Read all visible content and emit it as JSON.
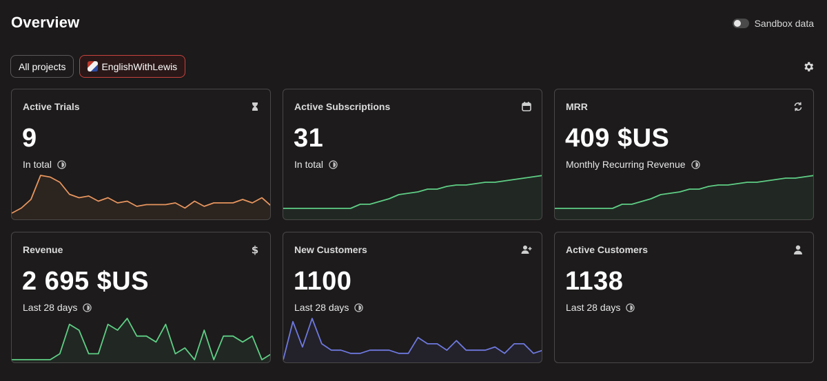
{
  "header": {
    "title": "Overview",
    "sandbox_label": "Sandbox data"
  },
  "filters": [
    {
      "label": "All projects",
      "selected": false
    },
    {
      "label": "EnglishWithLewis",
      "selected": true
    }
  ],
  "cards": [
    {
      "title": "Active Trials",
      "value": "9",
      "subtitle": "In total",
      "icon": "hourglass-icon",
      "color": "#e8965f",
      "series": [
        2,
        5,
        10,
        24,
        23,
        20,
        13,
        11,
        12,
        9,
        11,
        8,
        9,
        6,
        7,
        7,
        7,
        8,
        5,
        9,
        6,
        8,
        8,
        8,
        10,
        8,
        11,
        6
      ]
    },
    {
      "title": "Active Subscriptions",
      "value": "31",
      "subtitle": "In total",
      "icon": "calendar-icon",
      "color": "#5fcf86",
      "series": [
        6,
        6,
        6,
        6,
        6,
        6,
        6,
        6,
        9,
        9,
        11,
        13,
        16,
        17,
        18,
        20,
        20,
        22,
        23,
        23,
        24,
        25,
        25,
        26,
        27,
        28,
        29,
        30
      ]
    },
    {
      "title": "MRR",
      "value": "409 $US",
      "subtitle": "Monthly Recurring Revenue",
      "icon": "refresh-icon",
      "color": "#5fcf86",
      "series": [
        6,
        6,
        6,
        6,
        6,
        6,
        6,
        9,
        9,
        11,
        13,
        16,
        17,
        18,
        20,
        20,
        22,
        23,
        23,
        24,
        25,
        25,
        26,
        27,
        28,
        28,
        29,
        30
      ]
    },
    {
      "title": "Revenue",
      "value": "2 695 $US",
      "subtitle": "Last 28 days",
      "icon": "dollar-icon",
      "color": "#5fcf86",
      "series": [
        0,
        0,
        0,
        0,
        0,
        1,
        6,
        5,
        1,
        1,
        6,
        5,
        7,
        4,
        4,
        3,
        6,
        1,
        2,
        0,
        5,
        0,
        4,
        4,
        3,
        4,
        0,
        1
      ]
    },
    {
      "title": "New Customers",
      "value": "1100",
      "subtitle": "Last 28 days",
      "icon": "add-user-icon",
      "color": "#6e79e0",
      "series": [
        0,
        12,
        4,
        13,
        5,
        3,
        3,
        2,
        2,
        3,
        3,
        3,
        2,
        2,
        7,
        5,
        5,
        3,
        6,
        3,
        3,
        3,
        4,
        2,
        5,
        5,
        2,
        3
      ]
    },
    {
      "title": "Active Customers",
      "value": "1138",
      "subtitle": "Last 28 days",
      "icon": "user-icon",
      "color": "#5fcf86",
      "series": []
    }
  ]
}
